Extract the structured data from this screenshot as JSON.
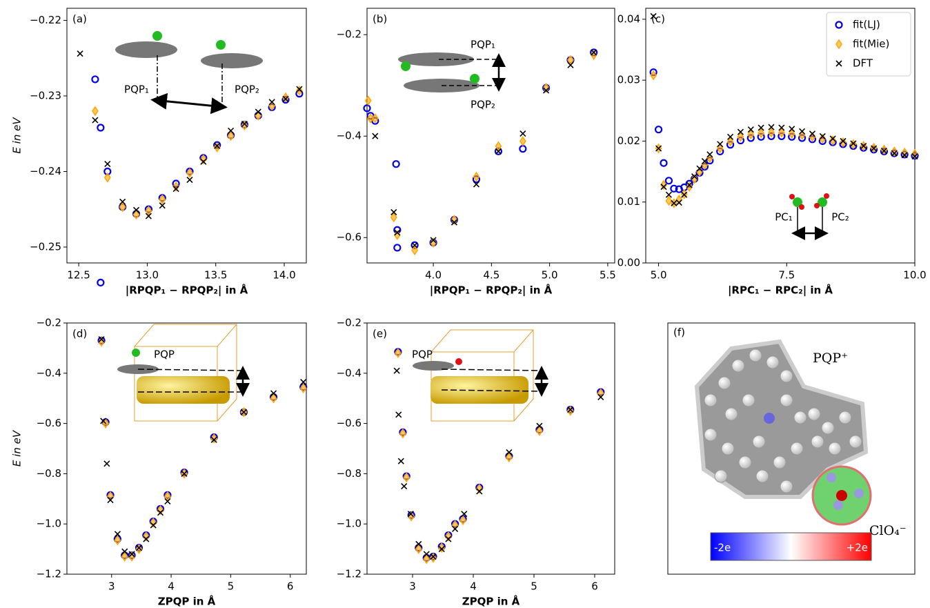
{
  "chart_data": [
    {
      "type": "scatter",
      "label": "(a)",
      "ylabel": "E in eV",
      "xlabel": "|RPQP₁ − RPQP₂| in Å",
      "xlim": [
        12.414,
        14.161
      ],
      "ylim": [
        -0.2521,
        -0.2184
      ],
      "xticks": [
        12.5,
        {
          "value": 13,
          "label": "13.0"
        },
        13.5,
        {
          "value": 14,
          "label": "14.0"
        }
      ],
      "yticks": [
        {
          "value": -0.25,
          "label": "−0.25"
        },
        {
          "value": -0.24,
          "label": "−0.24"
        },
        {
          "value": -0.23,
          "label": "−0.23"
        },
        {
          "value": -0.22,
          "label": "−0.22"
        }
      ],
      "annotations": [
        "PQP₁",
        "PQP₂"
      ],
      "series": [
        {
          "marker": "circle",
          "color": "#0000ee",
          "x": [
            12.62,
            12.66,
            12.66,
            12.71,
            12.82,
            12.92,
            13.01,
            13.11,
            13.21,
            13.31,
            13.41,
            13.51,
            13.61,
            13.71,
            13.81,
            13.91,
            14.01,
            14.11
          ],
          "values": [
            -0.2278,
            -0.2547,
            -0.2342,
            -0.24,
            -0.2447,
            -0.2456,
            -0.245,
            -0.2435,
            -0.2416,
            -0.24,
            -0.2382,
            -0.2365,
            -0.2352,
            -0.2338,
            -0.2326,
            -0.2315,
            -0.2305,
            -0.2297
          ]
        },
        {
          "marker": "diamond",
          "color": "#ffa500",
          "x": [
            12.62,
            12.71,
            12.82,
            12.92,
            13.01,
            13.11,
            13.21,
            13.31,
            13.41,
            13.51,
            13.61,
            13.71,
            13.81,
            13.91,
            14.01,
            14.11
          ],
          "values": [
            -0.232,
            -0.2408,
            -0.2447,
            -0.2457,
            -0.2452,
            -0.2437,
            -0.242,
            -0.2402,
            -0.2384,
            -0.2368,
            -0.2353,
            -0.2339,
            -0.2326,
            -0.2313,
            -0.2302,
            -0.2293
          ]
        },
        {
          "marker": "cross",
          "color": "#000000",
          "x": [
            12.51,
            12.62,
            12.71,
            12.82,
            12.92,
            13.01,
            13.11,
            13.21,
            13.31,
            13.41,
            13.51,
            13.61,
            13.71,
            13.81,
            13.91,
            14.01,
            14.11
          ],
          "values": [
            -0.2244,
            -0.2332,
            -0.239,
            -0.244,
            -0.2451,
            -0.2459,
            -0.2445,
            -0.2423,
            -0.2411,
            -0.2387,
            -0.2366,
            -0.2346,
            -0.2337,
            -0.2321,
            -0.2308,
            -0.2304,
            -0.2291
          ]
        }
      ]
    },
    {
      "type": "scatter",
      "label": "(b)",
      "xlabel": "|RPQP₁ − RPQP₂| in Å",
      "xlim": [
        3.43,
        5.56
      ],
      "ylim": [
        -0.65,
        -0.148
      ],
      "xticks": [
        {
          "value": 4,
          "label": "4.0"
        },
        4.5,
        {
          "value": 5,
          "label": "5.0"
        },
        5.5
      ],
      "yticks": [
        {
          "value": -0.6,
          "label": "−0.6"
        },
        {
          "value": -0.4,
          "label": "−0.4"
        },
        {
          "value": -0.2,
          "label": "−0.2"
        }
      ],
      "annotations": [
        "PQP₁",
        "PQP₂"
      ],
      "series": [
        {
          "marker": "circle",
          "color": "#0000ee",
          "x": [
            3.43,
            3.46,
            3.5,
            3.68,
            3.69,
            3.69,
            3.84,
            4.0,
            4.18,
            4.37,
            4.56,
            4.77,
            4.97,
            5.18,
            5.38
          ],
          "values": [
            -0.345,
            -0.36,
            -0.37,
            -0.455,
            -0.585,
            -0.62,
            -0.615,
            -0.61,
            -0.565,
            -0.485,
            -0.43,
            -0.425,
            -0.305,
            -0.25,
            -0.235
          ]
        },
        {
          "marker": "diamond",
          "color": "#ffa500",
          "x": [
            3.44,
            3.46,
            3.5,
            3.66,
            3.69,
            3.84,
            4.0,
            4.18,
            4.37,
            4.56,
            4.77,
            4.97,
            5.18,
            5.38
          ],
          "values": [
            -0.33,
            -0.365,
            -0.365,
            -0.56,
            -0.595,
            -0.625,
            -0.61,
            -0.565,
            -0.48,
            -0.42,
            -0.41,
            -0.305,
            -0.25,
            -0.24
          ]
        },
        {
          "marker": "cross",
          "color": "#000000",
          "x": [
            3.5,
            3.66,
            3.69,
            3.84,
            4.0,
            4.18,
            4.37,
            4.56,
            4.77,
            4.97,
            5.18,
            5.38
          ],
          "values": [
            -0.4,
            -0.55,
            -0.59,
            -0.615,
            -0.605,
            -0.57,
            -0.495,
            -0.43,
            -0.395,
            -0.31,
            -0.26,
            -0.235
          ]
        }
      ]
    },
    {
      "type": "scatter",
      "label": "(c)",
      "xlabel": "|RPC₁ − RPC₂| in Å",
      "legend": "upper right",
      "xlim": [
        4.75,
        10.0
      ],
      "ylim": [
        0,
        0.0418
      ],
      "xticks": [
        {
          "value": 5,
          "label": "5.0"
        },
        7.5,
        {
          "value": 10,
          "label": "10.0"
        }
      ],
      "yticks": [
        {
          "value": 0,
          "label": "0.00"
        },
        0.01,
        0.02,
        0.03,
        0.04
      ],
      "annotations": [
        "PC₁",
        "PC₂"
      ],
      "series": [
        {
          "name": "fit(LJ)",
          "marker": "circle",
          "color": "#0000ee",
          "x": [
            4.9,
            5.0,
            5.1,
            5.2,
            5.3,
            5.4,
            5.5,
            5.6,
            5.7,
            5.8,
            5.9,
            6.0,
            6.2,
            6.4,
            6.6,
            6.8,
            7.0,
            7.2,
            7.4,
            7.6,
            7.8,
            8.0,
            8.2,
            8.4,
            8.6,
            8.8,
            9.0,
            9.2,
            9.4,
            9.6,
            9.8,
            10.0
          ],
          "values": [
            0.0313,
            0.0219,
            0.0164,
            0.0135,
            0.0122,
            0.0121,
            0.0124,
            0.013,
            0.0138,
            0.0148,
            0.0158,
            0.0168,
            0.0183,
            0.0194,
            0.0201,
            0.0205,
            0.0207,
            0.0208,
            0.0208,
            0.0207,
            0.0205,
            0.0203,
            0.02,
            0.0198,
            0.0195,
            0.0192,
            0.0189,
            0.0186,
            0.0183,
            0.018,
            0.0178,
            0.0176
          ]
        },
        {
          "name": "fit(Mie)",
          "marker": "diamond",
          "color": "#ffa500",
          "x": [
            4.9,
            5.0,
            5.1,
            5.2,
            5.3,
            5.4,
            5.5,
            5.6,
            5.7,
            5.8,
            5.9,
            6.0,
            6.2,
            6.4,
            6.6,
            6.8,
            7.0,
            7.2,
            7.4,
            7.6,
            7.8,
            8.0,
            8.2,
            8.4,
            8.6,
            8.8,
            9.0,
            9.2,
            9.4,
            9.6,
            9.8,
            10.0
          ],
          "values": [
            0.0308,
            0.0188,
            0.0128,
            0.0102,
            0.0098,
            0.0104,
            0.0113,
            0.0125,
            0.0138,
            0.015,
            0.0161,
            0.0172,
            0.0188,
            0.0199,
            0.0207,
            0.0211,
            0.0213,
            0.0214,
            0.0214,
            0.0212,
            0.021,
            0.0207,
            0.0204,
            0.0201,
            0.0198,
            0.0195,
            0.0192,
            0.0189,
            0.0186,
            0.0183,
            0.0181,
            0.0179
          ]
        },
        {
          "name": "DFT",
          "marker": "cross",
          "color": "#000000",
          "x": [
            4.9,
            5.0,
            5.1,
            5.2,
            5.3,
            5.4,
            5.5,
            5.6,
            5.7,
            5.8,
            5.9,
            6.0,
            6.2,
            6.4,
            6.6,
            6.8,
            7.0,
            7.2,
            7.4,
            7.6,
            7.8,
            8.0,
            8.2,
            8.4,
            8.6,
            8.8,
            9.0,
            9.2,
            9.4,
            9.6,
            9.8,
            10.0
          ],
          "values": [
            0.0405,
            0.0188,
            0.0125,
            0.0112,
            0.0098,
            0.0099,
            0.0112,
            0.0128,
            0.0142,
            0.0155,
            0.0167,
            0.0178,
            0.0195,
            0.0207,
            0.0215,
            0.0219,
            0.0222,
            0.0223,
            0.0222,
            0.022,
            0.0216,
            0.0212,
            0.0208,
            0.0204,
            0.02,
            0.0196,
            0.0192,
            0.0188,
            0.0184,
            0.018,
            0.0177,
            0.0175
          ]
        }
      ]
    },
    {
      "type": "scatter",
      "label": "(d)",
      "ylabel": "E in eV",
      "xlabel": "ZPQP in Å",
      "xlim": [
        2.25,
        6.27
      ],
      "ylim": [
        -1.2,
        -0.2
      ],
      "xticks": [
        3,
        4,
        5,
        6
      ],
      "yticks": [
        {
          "value": -1.2,
          "label": "−1.2"
        },
        {
          "value": -1.0,
          "label": "−1.0"
        },
        {
          "value": -0.8,
          "label": "−0.8"
        },
        {
          "value": -0.6,
          "label": "−0.6"
        },
        {
          "value": -0.4,
          "label": "−0.4"
        },
        {
          "value": -0.2,
          "label": "−0.2"
        }
      ],
      "annotations": [
        "PQP"
      ],
      "series": [
        {
          "marker": "circle",
          "color": "#0000ee",
          "x": [
            2.83,
            2.9,
            2.98,
            3.1,
            3.22,
            3.34,
            3.46,
            3.58,
            3.7,
            3.82,
            3.94,
            4.22,
            4.72,
            5.22,
            5.72,
            6.22
          ],
          "values": [
            -0.27,
            -0.595,
            -0.885,
            -1.06,
            -1.125,
            -1.125,
            -1.095,
            -1.045,
            -0.99,
            -0.94,
            -0.885,
            -0.795,
            -0.655,
            -0.555,
            -0.495,
            -0.455
          ]
        },
        {
          "marker": "diamond",
          "color": "#ffa500",
          "x": [
            2.83,
            2.9,
            2.98,
            3.1,
            3.22,
            3.34,
            3.46,
            3.58,
            3.7,
            3.82,
            3.94,
            4.22,
            4.72,
            5.22,
            5.72,
            6.22
          ],
          "values": [
            -0.275,
            -0.6,
            -0.89,
            -1.065,
            -1.13,
            -1.13,
            -1.1,
            -1.05,
            -0.995,
            -0.945,
            -0.89,
            -0.8,
            -0.66,
            -0.555,
            -0.5,
            -0.46
          ]
        },
        {
          "marker": "cross",
          "color": "#000000",
          "x": [
            2.83,
            2.86,
            2.92,
            2.98,
            3.1,
            3.22,
            3.34,
            3.46,
            3.58,
            3.7,
            3.82,
            3.94,
            4.22,
            4.72,
            5.22,
            5.72,
            6.22
          ],
          "values": [
            -0.265,
            -0.59,
            -0.76,
            -0.905,
            -1.04,
            -1.11,
            -1.12,
            -1.095,
            -1.06,
            -1.005,
            -0.955,
            -0.91,
            -0.8,
            -0.665,
            -0.555,
            -0.48,
            -0.435
          ]
        }
      ]
    },
    {
      "type": "scatter",
      "label": "(e)",
      "xlabel": "ZPQP in Å",
      "xlim": [
        2.25,
        6.33
      ],
      "ylim": [
        -1.2,
        -0.2
      ],
      "xticks": [
        3,
        4,
        5,
        6
      ],
      "yticks": [
        {
          "value": -1.2,
          "label": "−1.2"
        },
        {
          "value": -1.0,
          "label": "−1.0"
        },
        {
          "value": -0.8,
          "label": "−0.8"
        },
        {
          "value": -0.6,
          "label": "−0.6"
        },
        {
          "value": -0.4,
          "label": "−0.4"
        },
        {
          "value": -0.2,
          "label": "−0.2"
        }
      ],
      "annotations": [
        "PQP"
      ],
      "series": [
        {
          "marker": "circle",
          "color": "#0000ee",
          "x": [
            2.76,
            2.84,
            2.9,
            2.98,
            3.1,
            3.23,
            3.34,
            3.48,
            3.59,
            3.7,
            3.83,
            4.1,
            4.59,
            5.09,
            5.6,
            6.1
          ],
          "values": [
            -0.315,
            -0.635,
            -0.81,
            -0.965,
            -1.095,
            -1.135,
            -1.13,
            -1.09,
            -1.045,
            -1.0,
            -0.98,
            -0.855,
            -0.73,
            -0.625,
            -0.545,
            -0.475
          ]
        },
        {
          "marker": "diamond",
          "color": "#ffa500",
          "x": [
            2.76,
            2.84,
            2.9,
            2.98,
            3.1,
            3.23,
            3.34,
            3.48,
            3.59,
            3.7,
            3.83,
            4.1,
            4.59,
            5.09,
            5.6,
            6.1
          ],
          "values": [
            -0.32,
            -0.64,
            -0.815,
            -0.97,
            -1.1,
            -1.14,
            -1.135,
            -1.095,
            -1.05,
            -1.005,
            -0.985,
            -0.86,
            -0.735,
            -0.63,
            -0.55,
            -0.48
          ]
        },
        {
          "marker": "cross",
          "color": "#000000",
          "x": [
            2.74,
            2.77,
            2.81,
            2.86,
            2.97,
            3.1,
            3.23,
            3.34,
            3.48,
            3.59,
            3.7,
            3.85,
            4.1,
            4.59,
            5.09,
            5.6,
            6.1
          ],
          "values": [
            -0.39,
            -0.565,
            -0.75,
            -0.85,
            -0.96,
            -1.08,
            -1.12,
            -1.13,
            -1.1,
            -1.06,
            -1.02,
            -0.96,
            -0.87,
            -0.715,
            -0.61,
            -0.545,
            -0.495
          ]
        }
      ]
    }
  ],
  "panel_f": {
    "label": "(f)",
    "cation": "PQP⁺",
    "anion": "ClO₄⁻",
    "colorbar_min": "-2e",
    "colorbar_max": "+2e"
  }
}
